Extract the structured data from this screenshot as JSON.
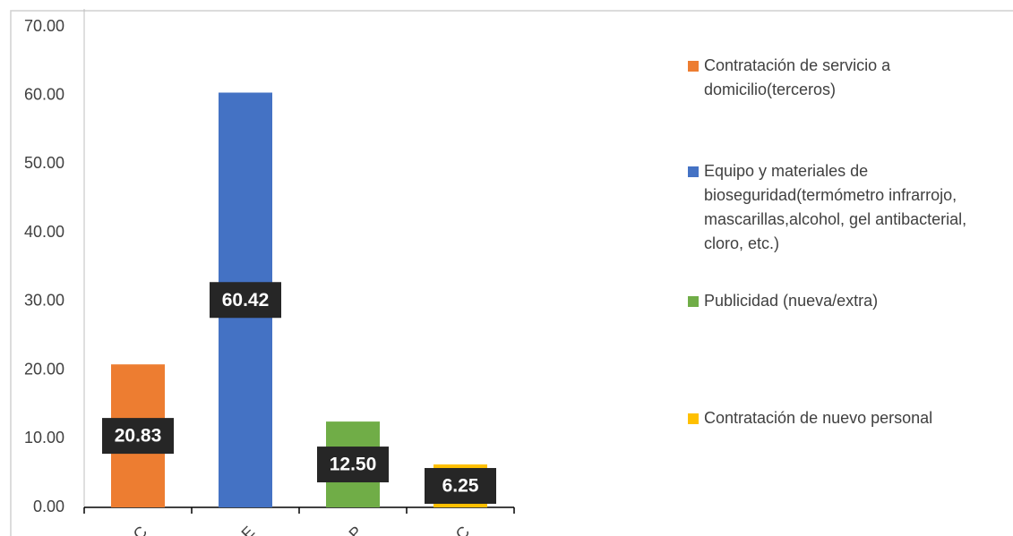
{
  "chart_data": {
    "type": "bar",
    "categories": [
      "C",
      "E",
      "P",
      "C"
    ],
    "series": [
      {
        "name": "Contratación de servicio a domicilio(terceros)",
        "color": "#ed7d31",
        "values": [
          20.83,
          null,
          null,
          null
        ]
      },
      {
        "name": "Equipo y materiales de bioseguridad(termómetro infrarrojo, mascarillas,alcohol, gel antibacterial, cloro, etc.)",
        "color": "#4472c4",
        "values": [
          null,
          60.42,
          null,
          null
        ]
      },
      {
        "name": "Publicidad (nueva/extra)",
        "color": "#70ad47",
        "values": [
          null,
          null,
          12.5,
          null
        ],
        "value_labels": [
          null,
          null,
          "12.50",
          null
        ]
      },
      {
        "name": "Contratación de nuevo personal",
        "color": "#ffc000",
        "values": [
          null,
          null,
          null,
          6.25
        ]
      }
    ],
    "ylim": [
      0,
      70
    ],
    "yticks": [
      {
        "value": 0,
        "label": "0.00"
      },
      {
        "value": 10,
        "label": "10.00"
      },
      {
        "value": 20,
        "label": "20.00"
      },
      {
        "value": 30,
        "label": "30.00"
      },
      {
        "value": 40,
        "label": "40.00"
      },
      {
        "value": 50,
        "label": "50.00"
      },
      {
        "value": 60,
        "label": "60.00"
      },
      {
        "value": 70,
        "label": "70.00"
      }
    ],
    "legend": "right"
  }
}
